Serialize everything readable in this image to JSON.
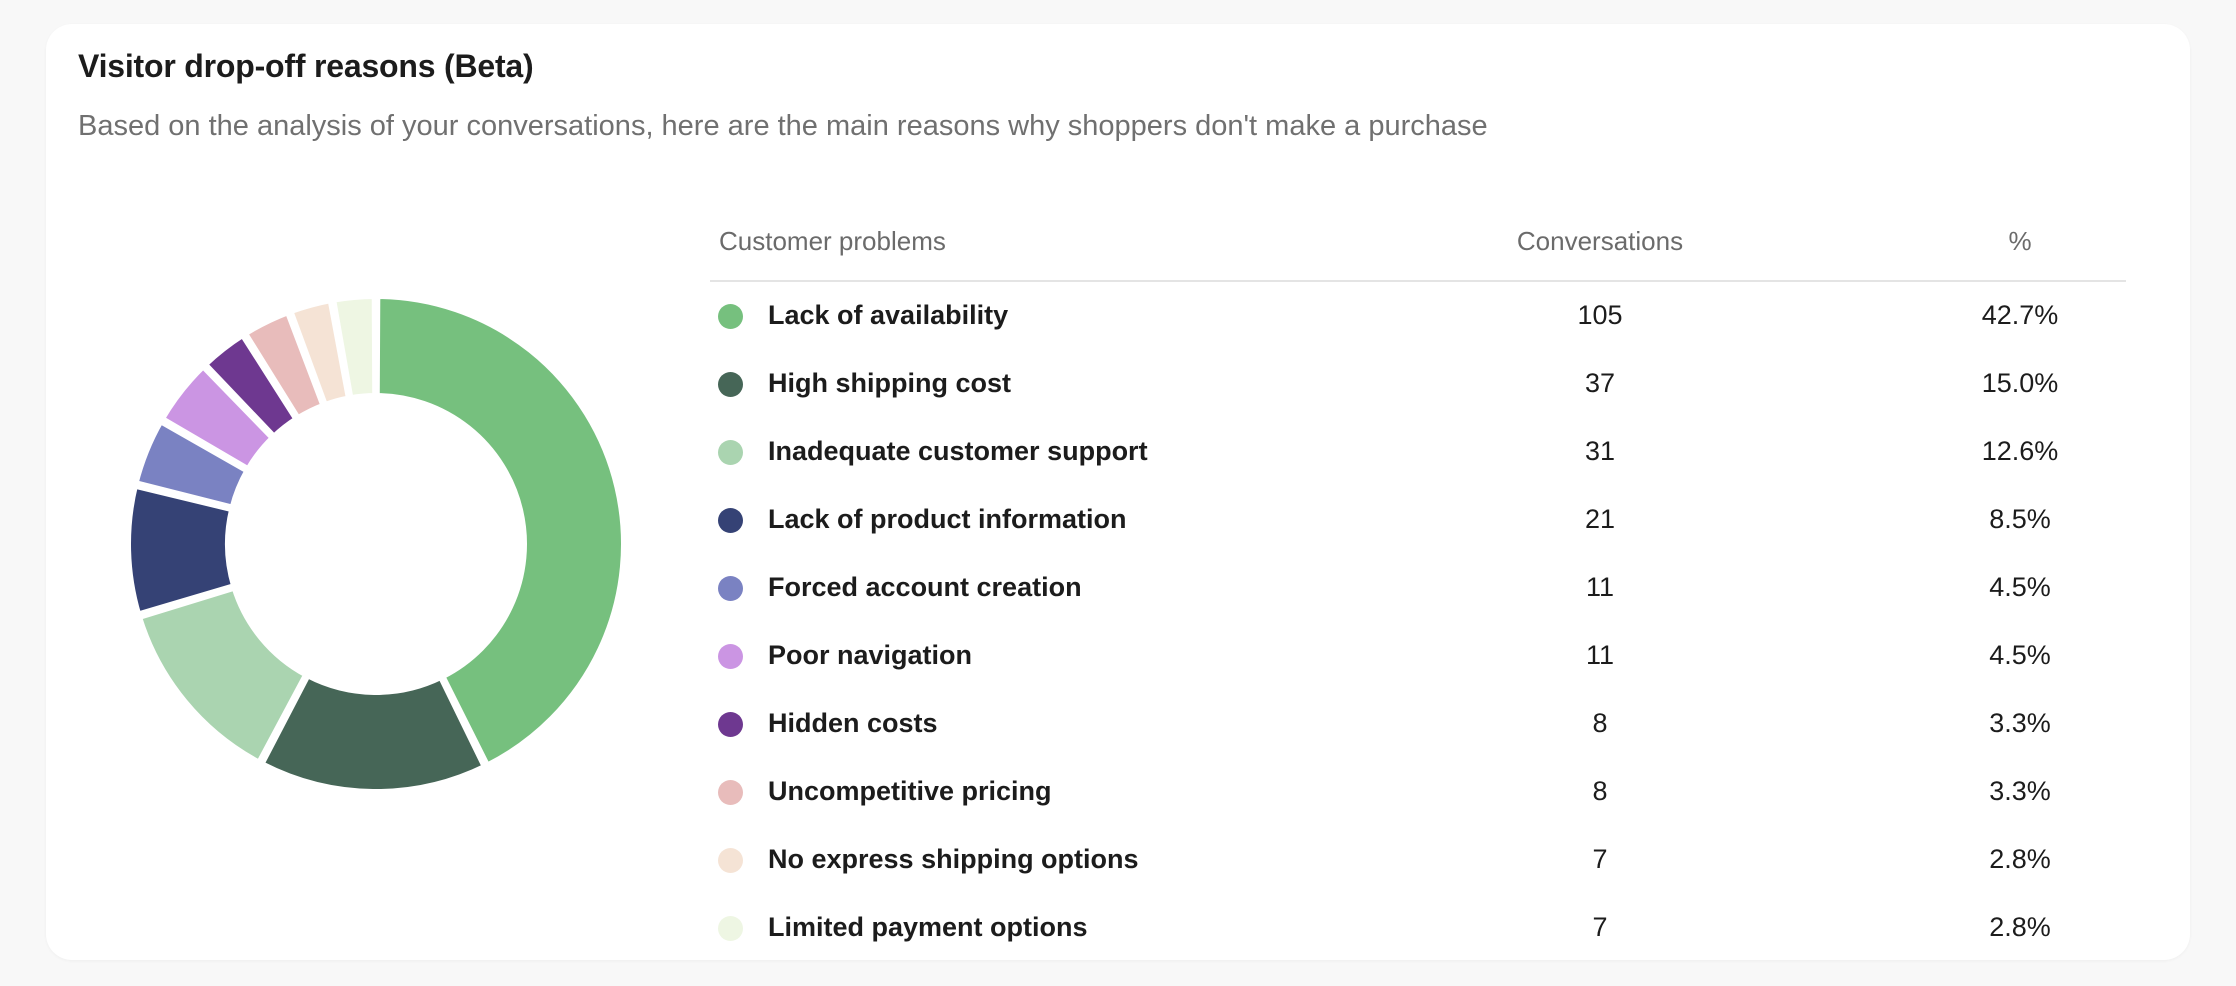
{
  "title": "Visitor drop-off reasons (Beta)",
  "subtitle": "Based on the analysis of your conversations, here are the main reasons why shoppers don't make a purchase",
  "table": {
    "headers": {
      "problem": "Customer problems",
      "conversations": "Conversations",
      "percent": "%"
    },
    "rows": [
      {
        "label": "Lack of availability",
        "count": "105",
        "percent": "42.7%",
        "color": "#76c07e"
      },
      {
        "label": "High shipping cost",
        "count": "37",
        "percent": "15.0%",
        "color": "#466657"
      },
      {
        "label": "Inadequate customer support",
        "count": "31",
        "percent": "12.6%",
        "color": "#aad4b0"
      },
      {
        "label": "Lack of product information",
        "count": "21",
        "percent": "8.5%",
        "color": "#354275"
      },
      {
        "label": "Forced account creation",
        "count": "11",
        "percent": "4.5%",
        "color": "#7a82c2"
      },
      {
        "label": "Poor navigation",
        "count": "11",
        "percent": "4.5%",
        "color": "#cb95e3"
      },
      {
        "label": "Hidden costs",
        "count": "8",
        "percent": "3.3%",
        "color": "#6e3890"
      },
      {
        "label": "Uncompetitive pricing",
        "count": "8",
        "percent": "3.3%",
        "color": "#e8bcbb"
      },
      {
        "label": "No express shipping options",
        "count": "7",
        "percent": "2.8%",
        "color": "#f5e3d5"
      },
      {
        "label": "Limited payment options",
        "count": "7",
        "percent": "2.8%",
        "color": "#eef6e3"
      }
    ]
  },
  "chart_data": {
    "type": "pie",
    "variant": "donut",
    "categories": [
      "Lack of availability",
      "High shipping cost",
      "Inadequate customer support",
      "Lack of product information",
      "Forced account creation",
      "Poor navigation",
      "Hidden costs",
      "Uncompetitive pricing",
      "No express shipping options",
      "Limited payment options"
    ],
    "values": [
      105,
      37,
      31,
      21,
      11,
      11,
      8,
      8,
      7,
      7
    ],
    "colors": [
      "#76c07e",
      "#466657",
      "#aad4b0",
      "#354275",
      "#7a82c2",
      "#cb95e3",
      "#6e3890",
      "#e8bcbb",
      "#f5e3d5",
      "#eef6e3"
    ]
  }
}
